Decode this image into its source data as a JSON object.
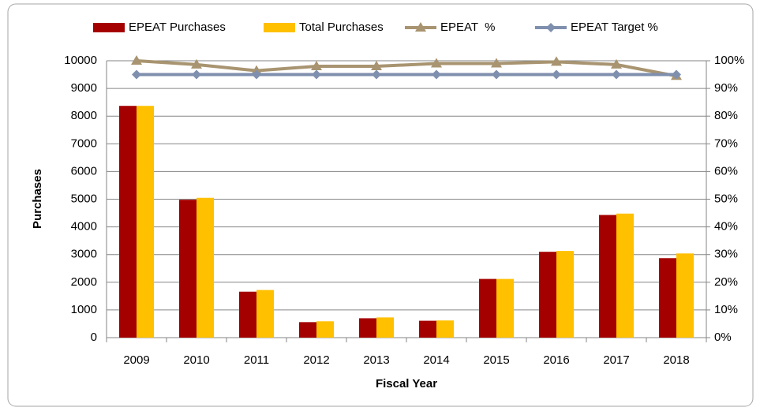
{
  "chart_data": {
    "type": "bar_line",
    "x_label": "Fiscal Year",
    "y_label": "Purchases",
    "categories": [
      "2009",
      "2010",
      "2011",
      "2012",
      "2013",
      "2014",
      "2015",
      "2016",
      "2017",
      "2018"
    ],
    "series": [
      {
        "name": "EPEAT Purchases",
        "color": "#a50000",
        "kind": "bar",
        "values": [
          8370,
          4980,
          1660,
          560,
          700,
          610,
          2120,
          3100,
          4430,
          2870
        ]
      },
      {
        "name": "Total Purchases",
        "color": "#ffc000",
        "kind": "bar",
        "values": [
          8370,
          5050,
          1720,
          590,
          730,
          620,
          2120,
          3130,
          4480,
          3040
        ]
      },
      {
        "name": "EPEAT  %",
        "color": "#a89470",
        "kind": "line",
        "marker": "triangle",
        "axis": "y2",
        "values": [
          100,
          98.6,
          96.4,
          98,
          98,
          99,
          99,
          99.6,
          98.6,
          94.5
        ]
      },
      {
        "name": "EPEAT Target %",
        "color": "#7f8fae",
        "kind": "line",
        "marker": "diamond",
        "axis": "y2",
        "values": [
          95,
          95,
          95,
          95,
          95,
          95,
          95,
          95,
          95,
          95
        ]
      }
    ],
    "ylim": [
      0,
      10000
    ],
    "yticks": [
      0,
      1000,
      2000,
      3000,
      4000,
      5000,
      6000,
      7000,
      8000,
      9000,
      10000
    ],
    "y2lim": [
      0,
      100
    ],
    "y2ticks": [
      {
        "value": 0,
        "label": "0%"
      },
      {
        "value": 10,
        "label": "10%"
      },
      {
        "value": 20,
        "label": "20%"
      },
      {
        "value": 30,
        "label": "30%"
      },
      {
        "value": 40,
        "label": "40%"
      },
      {
        "value": 50,
        "label": "50%"
      },
      {
        "value": 60,
        "label": "60%"
      },
      {
        "value": 70,
        "label": "70%"
      },
      {
        "value": 80,
        "label": "80%"
      },
      {
        "value": 90,
        "label": "90%"
      },
      {
        "value": 100,
        "label": "100%"
      }
    ],
    "grid": true,
    "legend": "top"
  }
}
